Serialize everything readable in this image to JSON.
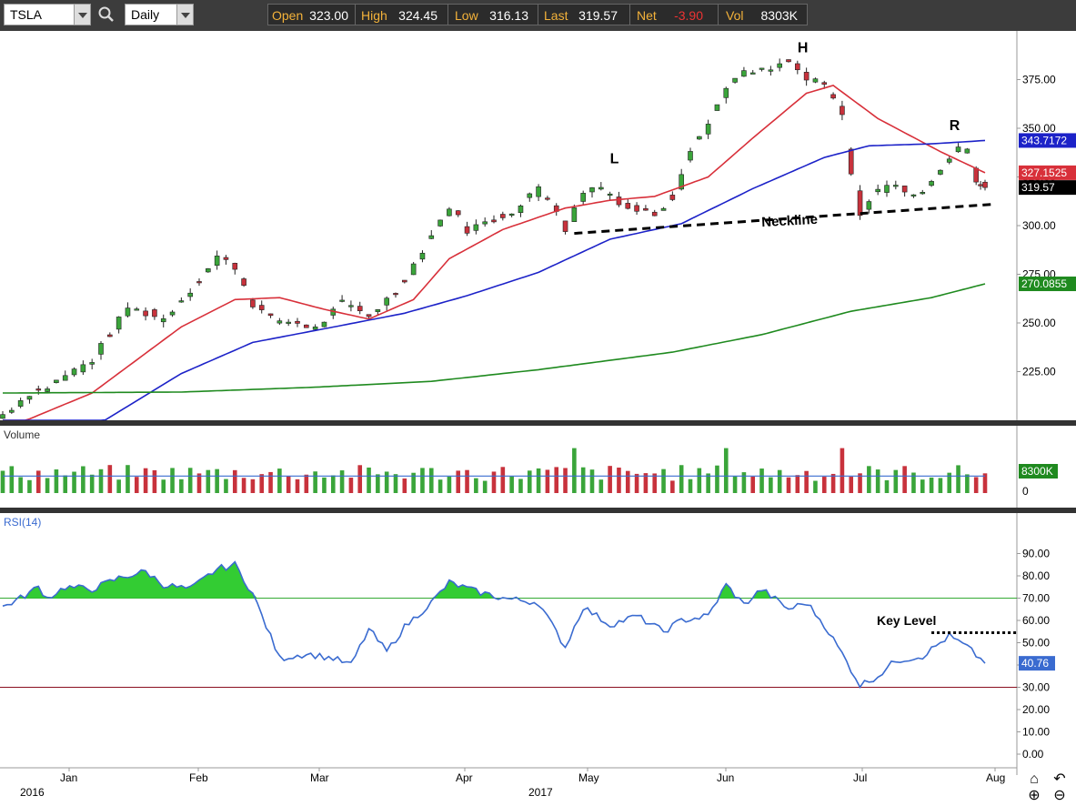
{
  "toolbar": {
    "symbol": "TSLA",
    "period": "Daily",
    "open_label": "Open",
    "open_value": "323.00",
    "high_label": "High",
    "high_value": "324.45",
    "low_label": "Low",
    "low_value": "316.13",
    "last_label": "Last",
    "last_value": "319.57",
    "net_label": "Net",
    "net_value": "-3.90",
    "vol_label": "Vol",
    "vol_value": "8303K",
    "icons": [
      "dropdown-arrow-icon",
      "search-icon"
    ]
  },
  "colors": {
    "up_candle": "#3aa53a",
    "down_candle": "#c8323c",
    "ma_short": "#d8303a",
    "ma_mid": "#1c22c8",
    "ma_long": "#1f8a1f",
    "rsi_line": "#3a6bd0",
    "rsi_fill": "#33cc33",
    "background": "#ffffff",
    "panel_divider": "#333333"
  },
  "chart_data": {
    "type": "candlestick",
    "symbol": "TSLA",
    "price_axis": {
      "ticks": [
        "375.00",
        "350.00",
        "325.00",
        "300.00",
        "275.00",
        "250.00",
        "225.00"
      ],
      "range": [
        200,
        400
      ]
    },
    "x_axis": {
      "months": [
        "Jan",
        "Feb",
        "Mar",
        "Apr",
        "May",
        "Jun",
        "Jul",
        "Aug"
      ],
      "years": [
        "2016",
        "2017"
      ]
    },
    "price_path_anchors": [
      {
        "t": 0,
        "p": 203
      },
      {
        "t": 6,
        "p": 214
      },
      {
        "t": 10,
        "p": 217
      },
      {
        "t": 14,
        "p": 223
      },
      {
        "t": 20,
        "p": 231
      },
      {
        "t": 28,
        "p": 258
      },
      {
        "t": 36,
        "p": 252
      },
      {
        "t": 44,
        "p": 272
      },
      {
        "t": 48,
        "p": 284
      },
      {
        "t": 52,
        "p": 279
      },
      {
        "t": 56,
        "p": 260
      },
      {
        "t": 60,
        "p": 252
      },
      {
        "t": 66,
        "p": 250
      },
      {
        "t": 70,
        "p": 247
      },
      {
        "t": 76,
        "p": 260
      },
      {
        "t": 82,
        "p": 254
      },
      {
        "t": 88,
        "p": 266
      },
      {
        "t": 92,
        "p": 280
      },
      {
        "t": 96,
        "p": 295
      },
      {
        "t": 100,
        "p": 310
      },
      {
        "t": 104,
        "p": 298
      },
      {
        "t": 110,
        "p": 303
      },
      {
        "t": 116,
        "p": 310
      },
      {
        "t": 120,
        "p": 320
      },
      {
        "t": 124,
        "p": 309
      },
      {
        "t": 126,
        "p": 298
      },
      {
        "t": 130,
        "p": 318
      },
      {
        "t": 134,
        "p": 320
      },
      {
        "t": 140,
        "p": 309
      },
      {
        "t": 146,
        "p": 306
      },
      {
        "t": 150,
        "p": 315
      },
      {
        "t": 154,
        "p": 340
      },
      {
        "t": 158,
        "p": 352
      },
      {
        "t": 162,
        "p": 372
      },
      {
        "t": 166,
        "p": 378
      },
      {
        "t": 172,
        "p": 380
      },
      {
        "t": 176,
        "p": 384
      },
      {
        "t": 180,
        "p": 375
      },
      {
        "t": 184,
        "p": 372
      },
      {
        "t": 188,
        "p": 357
      },
      {
        "t": 190,
        "p": 325
      },
      {
        "t": 192,
        "p": 307
      },
      {
        "t": 196,
        "p": 318
      },
      {
        "t": 200,
        "p": 322
      },
      {
        "t": 204,
        "p": 314
      },
      {
        "t": 208,
        "p": 324
      },
      {
        "t": 212,
        "p": 335
      },
      {
        "t": 214,
        "p": 340
      },
      {
        "t": 216,
        "p": 338
      },
      {
        "t": 218,
        "p": 323
      },
      {
        "t": 220,
        "p": 319.57
      }
    ],
    "volume_axis": {
      "ticks": [
        "0"
      ],
      "label_value": "8300K"
    },
    "rsi": {
      "label": "RSI(14)",
      "current": "40.76",
      "ticks": [
        "90.00",
        "80.00",
        "70.00",
        "60.00",
        "50.00",
        "40.00",
        "30.00",
        "20.00",
        "10.00",
        "0.00"
      ],
      "overbought": 70,
      "oversold": 30,
      "path_anchors": [
        {
          "t": 0,
          "p": 66
        },
        {
          "t": 4,
          "p": 70
        },
        {
          "t": 8,
          "p": 75
        },
        {
          "t": 10,
          "p": 70
        },
        {
          "t": 14,
          "p": 75
        },
        {
          "t": 20,
          "p": 74
        },
        {
          "t": 26,
          "p": 79
        },
        {
          "t": 32,
          "p": 82
        },
        {
          "t": 36,
          "p": 76
        },
        {
          "t": 42,
          "p": 74
        },
        {
          "t": 48,
          "p": 83
        },
        {
          "t": 52,
          "p": 85
        },
        {
          "t": 56,
          "p": 72
        },
        {
          "t": 62,
          "p": 43
        },
        {
          "t": 68,
          "p": 45
        },
        {
          "t": 74,
          "p": 43
        },
        {
          "t": 78,
          "p": 40
        },
        {
          "t": 82,
          "p": 56
        },
        {
          "t": 86,
          "p": 46
        },
        {
          "t": 90,
          "p": 57
        },
        {
          "t": 96,
          "p": 68
        },
        {
          "t": 100,
          "p": 77
        },
        {
          "t": 106,
          "p": 73
        },
        {
          "t": 112,
          "p": 70
        },
        {
          "t": 120,
          "p": 68
        },
        {
          "t": 126,
          "p": 48
        },
        {
          "t": 130,
          "p": 66
        },
        {
          "t": 136,
          "p": 58
        },
        {
          "t": 142,
          "p": 62
        },
        {
          "t": 148,
          "p": 55
        },
        {
          "t": 152,
          "p": 60
        },
        {
          "t": 158,
          "p": 62
        },
        {
          "t": 162,
          "p": 76
        },
        {
          "t": 166,
          "p": 67
        },
        {
          "t": 170,
          "p": 74
        },
        {
          "t": 176,
          "p": 65
        },
        {
          "t": 180,
          "p": 68
        },
        {
          "t": 184,
          "p": 58
        },
        {
          "t": 188,
          "p": 45
        },
        {
          "t": 192,
          "p": 31
        },
        {
          "t": 196,
          "p": 35
        },
        {
          "t": 200,
          "p": 42
        },
        {
          "t": 206,
          "p": 44
        },
        {
          "t": 212,
          "p": 53
        },
        {
          "t": 216,
          "p": 48
        },
        {
          "t": 220,
          "p": 40.76
        }
      ]
    },
    "moving_averages": [
      {
        "name": "MA short",
        "value_label": "327.1525",
        "anchors": [
          {
            "t": 0,
            "p": 195
          },
          {
            "t": 20,
            "p": 214
          },
          {
            "t": 40,
            "p": 248
          },
          {
            "t": 52,
            "p": 262
          },
          {
            "t": 62,
            "p": 263
          },
          {
            "t": 72,
            "p": 257
          },
          {
            "t": 82,
            "p": 252
          },
          {
            "t": 92,
            "p": 262
          },
          {
            "t": 100,
            "p": 283
          },
          {
            "t": 112,
            "p": 298
          },
          {
            "t": 126,
            "p": 309
          },
          {
            "t": 136,
            "p": 313
          },
          {
            "t": 146,
            "p": 315
          },
          {
            "t": 158,
            "p": 325
          },
          {
            "t": 168,
            "p": 345
          },
          {
            "t": 180,
            "p": 368
          },
          {
            "t": 186,
            "p": 372
          },
          {
            "t": 196,
            "p": 355
          },
          {
            "t": 210,
            "p": 338
          },
          {
            "t": 220,
            "p": 327.15
          }
        ]
      },
      {
        "name": "MA mid",
        "value_label": "343.7172",
        "anchors": [
          {
            "t": 0,
            "p": 170
          },
          {
            "t": 20,
            "p": 196
          },
          {
            "t": 40,
            "p": 224
          },
          {
            "t": 56,
            "p": 240
          },
          {
            "t": 72,
            "p": 247
          },
          {
            "t": 90,
            "p": 255
          },
          {
            "t": 104,
            "p": 264
          },
          {
            "t": 120,
            "p": 276
          },
          {
            "t": 136,
            "p": 293
          },
          {
            "t": 152,
            "p": 301
          },
          {
            "t": 168,
            "p": 319
          },
          {
            "t": 184,
            "p": 335
          },
          {
            "t": 194,
            "p": 341
          },
          {
            "t": 208,
            "p": 342
          },
          {
            "t": 220,
            "p": 343.72
          }
        ]
      },
      {
        "name": "MA long",
        "value_label": "270.0855",
        "anchors": [
          {
            "t": 0,
            "p": 214
          },
          {
            "t": 40,
            "p": 214.5
          },
          {
            "t": 70,
            "p": 217
          },
          {
            "t": 96,
            "p": 220
          },
          {
            "t": 120,
            "p": 226
          },
          {
            "t": 150,
            "p": 235
          },
          {
            "t": 170,
            "p": 244
          },
          {
            "t": 190,
            "p": 256
          },
          {
            "t": 208,
            "p": 263
          },
          {
            "t": 220,
            "p": 270.09
          }
        ]
      }
    ],
    "annotations": {
      "left_shoulder": "L",
      "head": "H",
      "right_shoulder": "R",
      "neckline": "Neckline",
      "key_level": "Key Level"
    },
    "panels": {
      "volume_label": "Volume"
    }
  }
}
